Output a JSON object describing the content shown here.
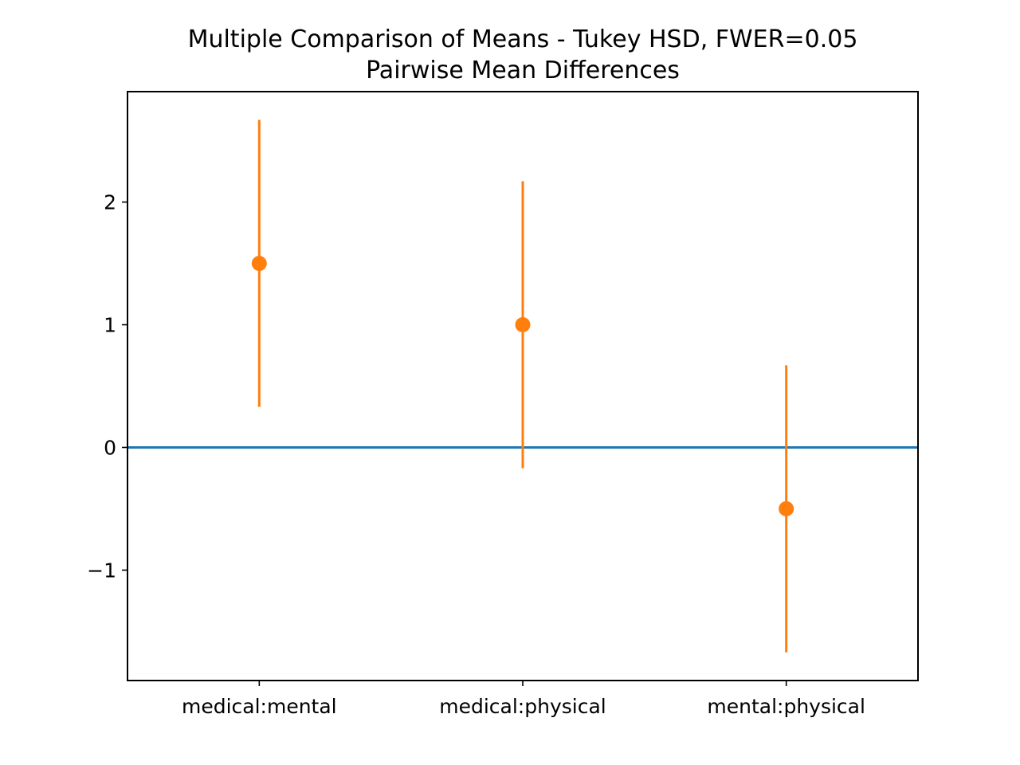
{
  "chart_data": {
    "type": "errorbar",
    "title": "Multiple Comparison of Means - Tukey HSD, FWER=0.05",
    "subtitle": "Pairwise Mean Differences",
    "xlabel": "",
    "ylabel": "",
    "categories": [
      "medical:mental",
      "medical:physical",
      "mental:physical"
    ],
    "series": [
      {
        "values": [
          1.5,
          1.0,
          -0.5
        ],
        "lower": [
          0.33,
          -0.17,
          -1.67
        ],
        "upper": [
          2.67,
          2.17,
          0.67
        ],
        "color": "#ff7f0e"
      }
    ],
    "reference_line": {
      "y": 0,
      "color": "#1f77b4"
    },
    "y_ticks": [
      -1,
      0,
      1,
      2
    ],
    "y_tick_labels": [
      "−1",
      "0",
      "1",
      "2"
    ],
    "ylim": [
      -1.9,
      2.9
    ],
    "xlim": [
      0.5,
      3.5
    ],
    "grid": false,
    "legend": "none"
  }
}
